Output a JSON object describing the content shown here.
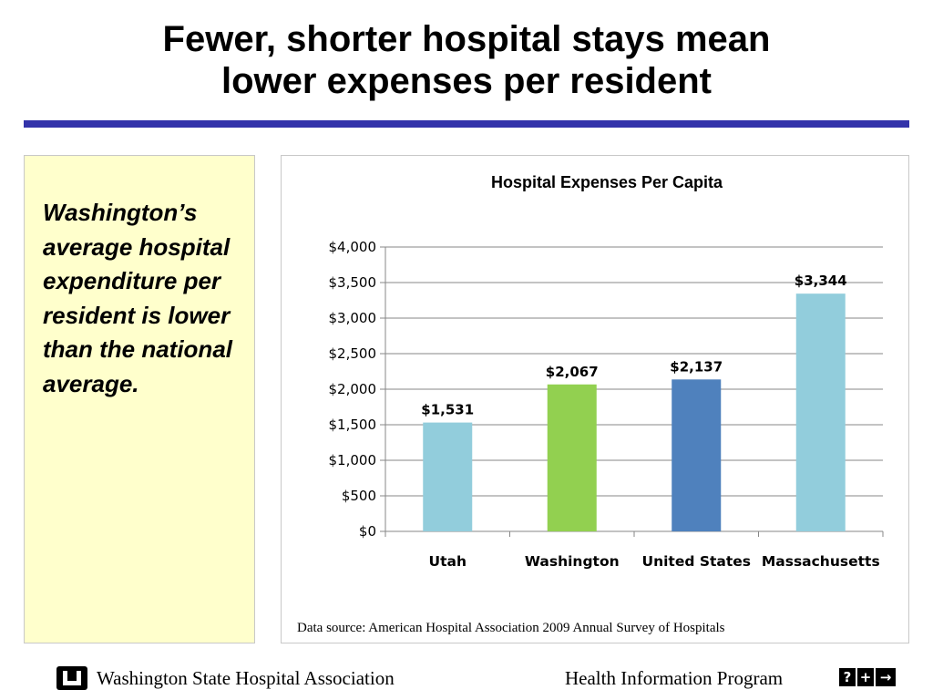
{
  "slide": {
    "title_line1": "Fewer, shorter hospital stays mean",
    "title_line2": "lower expenses per resident",
    "callout": "Washington’s average hospital expenditure per resident is lower than the national average.",
    "source_note": "Data source:  American Hospital Association 2009 Annual Survey of Hospitals"
  },
  "footer": {
    "organization": "Washington State Hospital Association",
    "program": "Health Information Program",
    "icon_glyphs": [
      "?",
      "+",
      "→"
    ]
  },
  "chart_data": {
    "type": "bar",
    "title": "Hospital Expenses Per Capita",
    "xlabel": "",
    "ylabel": "",
    "categories": [
      "Utah",
      "Washington",
      "United States",
      "Massachusetts"
    ],
    "values": [
      1531,
      2067,
      2137,
      3344
    ],
    "data_labels": [
      "$1,531",
      "$2,067",
      "$2,137",
      "$3,344"
    ],
    "bar_colors": [
      "#92cddc",
      "#92d050",
      "#4f81bd",
      "#92cddc"
    ],
    "ylim": [
      0,
      4000
    ],
    "yticks": [
      0,
      500,
      1000,
      1500,
      2000,
      2500,
      3000,
      3500,
      4000
    ],
    "ytick_labels": [
      "$0",
      "$500",
      "$1,000",
      "$1,500",
      "$2,000",
      "$2,500",
      "$3,000",
      "$3,500",
      "$4,000"
    ],
    "grid": true,
    "legend": "none"
  }
}
